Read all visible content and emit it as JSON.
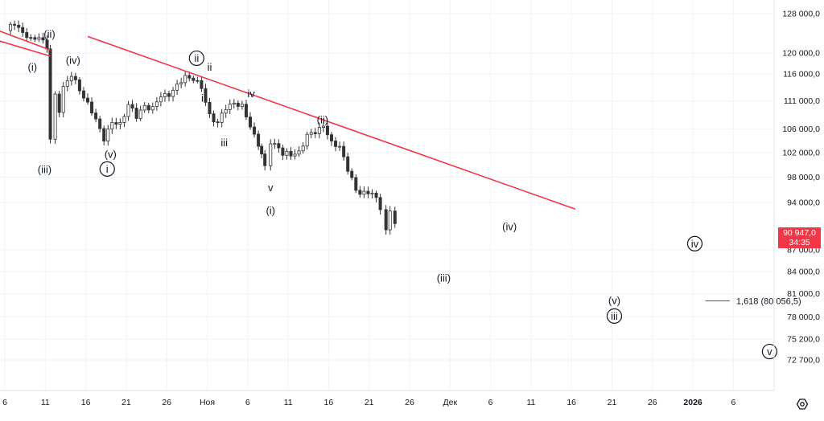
{
  "chart_data": {
    "type": "candlestick",
    "x_ticks": [
      "6",
      "11",
      "16",
      "21",
      "26",
      "Ноя",
      "6",
      "11",
      "16",
      "21",
      "26",
      "Дек",
      "6",
      "11",
      "16",
      "21",
      "26",
      "2026",
      "6"
    ],
    "y_ticks": [
      "128 000,0",
      "120 000,0",
      "116 000,0",
      "111 000,0",
      "106 000,0",
      "102 000,0",
      "98 000,0",
      "94 000,0",
      "87 000,0",
      "84 000,0",
      "81 000,0",
      "78 000,0",
      "75 200,0",
      "72 700,0"
    ],
    "y_tick_values": [
      128000,
      120000,
      116000,
      111000,
      106000,
      102000,
      98000,
      94000,
      87000,
      84000,
      81000,
      78000,
      75200,
      72700
    ],
    "y_scale": "log",
    "ylim": [
      71000,
      129500
    ],
    "current_price": "90 947,0",
    "countdown": "34:35",
    "price_path": [
      [
        0,
        124500
      ],
      [
        1,
        126200
      ],
      [
        2,
        124000
      ],
      [
        3,
        122500
      ],
      [
        4,
        123500
      ],
      [
        5,
        121000
      ],
      [
        5.4,
        104000
      ],
      [
        6,
        112000
      ],
      [
        6.5,
        109500
      ],
      [
        7,
        113500
      ],
      [
        8,
        115600
      ],
      [
        9,
        113200
      ],
      [
        10,
        110400
      ],
      [
        11,
        107500
      ],
      [
        12,
        104500
      ],
      [
        13,
        107000
      ],
      [
        14,
        106800
      ],
      [
        15,
        110500
      ],
      [
        16,
        108000
      ],
      [
        17,
        110200
      ],
      [
        18,
        109600
      ],
      [
        19,
        111800
      ],
      [
        20,
        112300
      ],
      [
        21,
        113600
      ],
      [
        22,
        115500
      ],
      [
        23,
        115200
      ],
      [
        24,
        113200
      ],
      [
        25,
        108500
      ],
      [
        26,
        107000
      ],
      [
        27,
        109700
      ],
      [
        28,
        110800
      ],
      [
        29,
        109800
      ],
      [
        30,
        106500
      ],
      [
        31,
        103500
      ],
      [
        31.8,
        99500
      ],
      [
        32.5,
        103800
      ],
      [
        33.5,
        103000
      ],
      [
        34,
        101700
      ],
      [
        35,
        101600
      ],
      [
        36,
        102200
      ],
      [
        37,
        104700
      ],
      [
        38,
        105600
      ],
      [
        39,
        106700
      ],
      [
        40,
        103400
      ],
      [
        41,
        103200
      ],
      [
        42,
        99200
      ],
      [
        43,
        95800
      ],
      [
        44,
        95600
      ],
      [
        45,
        95400
      ],
      [
        46,
        93300
      ],
      [
        46.7,
        90000
      ],
      [
        47.2,
        92600
      ],
      [
        47.8,
        91000
      ]
    ],
    "trendlines": [
      {
        "from": [
          -1.5,
          124800
        ],
        "to": [
          5.4,
          120600
        ]
      },
      {
        "from": [
          -1.5,
          122700
        ],
        "to": [
          5.4,
          119400
        ]
      },
      {
        "from": [
          10,
          123300
        ],
        "to": [
          70,
          93000
        ]
      }
    ],
    "fib_level": {
      "label": "1,618 (80 056,5)",
      "value": 80056.5,
      "from": 86,
      "to": 89
    },
    "wave_labels": [
      {
        "text": "(ii)",
        "x": 5.3,
        "y": 123800,
        "circle": false
      },
      {
        "text": "(i)",
        "x": 3.2,
        "y": 117300,
        "circle": false
      },
      {
        "text": "(iv)",
        "x": 8.2,
        "y": 118600,
        "circle": false
      },
      {
        "text": "(iii)",
        "x": 4.7,
        "y": 99200,
        "circle": false
      },
      {
        "text": "(v)",
        "x": 12.8,
        "y": 101700,
        "circle": false
      },
      {
        "text": "i",
        "x": 12.4,
        "y": 99300,
        "circle": true
      },
      {
        "text": "ii",
        "x": 23.4,
        "y": 119000,
        "circle": true
      },
      {
        "text": "ii",
        "x": 25.0,
        "y": 117300,
        "circle": false
      },
      {
        "text": "i",
        "x": 24.1,
        "y": 111500,
        "circle": false
      },
      {
        "text": "iv",
        "x": 30.1,
        "y": 112300,
        "circle": false
      },
      {
        "text": "iii",
        "x": 26.8,
        "y": 103700,
        "circle": false
      },
      {
        "text": "(ii)",
        "x": 38.9,
        "y": 107600,
        "circle": false
      },
      {
        "text": "v",
        "x": 32.5,
        "y": 96300,
        "circle": false
      },
      {
        "text": "(i)",
        "x": 32.5,
        "y": 92800,
        "circle": false
      },
      {
        "text": "(iv)",
        "x": 61.9,
        "y": 90400,
        "circle": false
      },
      {
        "text": "(iii)",
        "x": 53.8,
        "y": 83100,
        "circle": false
      },
      {
        "text": "(v)",
        "x": 74.8,
        "y": 80100,
        "circle": false
      },
      {
        "text": "iii",
        "x": 74.8,
        "y": 78100,
        "circle": true
      },
      {
        "text": "iv",
        "x": 84.7,
        "y": 87900,
        "circle": true
      },
      {
        "text": "v",
        "x": 93.9,
        "y": 73700,
        "circle": true
      }
    ],
    "colors": {
      "candle": "#333333",
      "trendline": "#f23645",
      "grid": "#f0f3fa",
      "price_tag": "#f23645",
      "axis_text": "#131722"
    }
  }
}
